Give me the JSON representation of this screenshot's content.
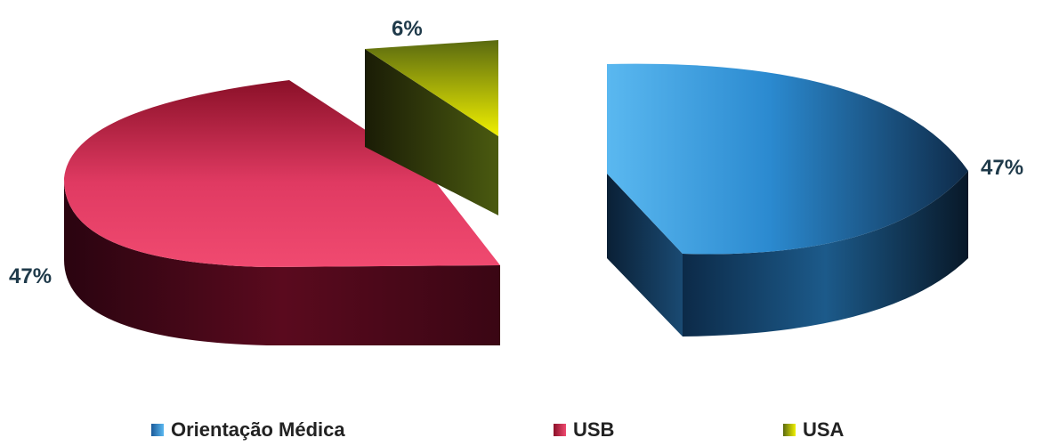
{
  "chart_data": {
    "type": "pie",
    "categories": [
      "Orientação Médica",
      "USB",
      "USA"
    ],
    "values": [
      47,
      47,
      6
    ],
    "labels": [
      "47%",
      "47%",
      "6%"
    ],
    "colors": [
      "#3a9ad8",
      "#d8305a",
      "#d6d600"
    ],
    "legend_position": "bottom",
    "exploded": true,
    "style": "3d"
  }
}
